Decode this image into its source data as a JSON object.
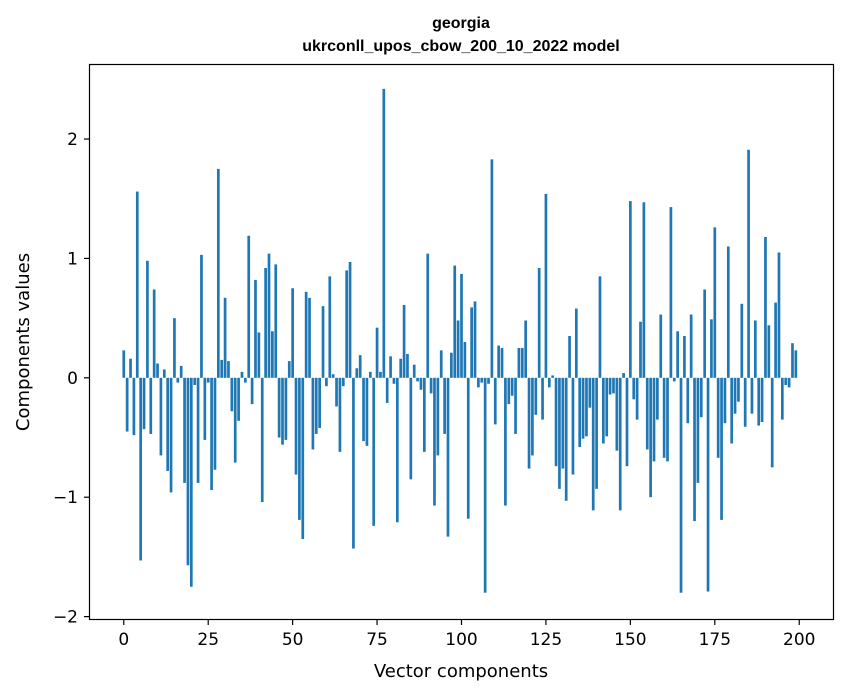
{
  "chart_data": {
    "type": "bar",
    "title": "georgia",
    "subtitle": "ukrconll_upos_cbow_200_10_2022 model",
    "xlabel": "Vector components",
    "ylabel": "Components values",
    "xlim": [
      -10,
      210
    ],
    "ylim": [
      -2.02,
      2.62
    ],
    "xticks": [
      0,
      25,
      50,
      75,
      100,
      125,
      150,
      175,
      200
    ],
    "xtick_labels": [
      "0",
      "25",
      "50",
      "75",
      "100",
      "125",
      "150",
      "175",
      "200"
    ],
    "yticks": [
      -2,
      -1,
      0,
      1,
      2
    ],
    "ytick_labels": [
      "−2",
      "−1",
      "0",
      "1",
      "2"
    ],
    "grid": false,
    "bar_color": "#1f77b4",
    "x": [
      0,
      1,
      2,
      3,
      4,
      5,
      6,
      7,
      8,
      9,
      10,
      11,
      12,
      13,
      14,
      15,
      16,
      17,
      18,
      19,
      20,
      21,
      22,
      23,
      24,
      25,
      26,
      27,
      28,
      29,
      30,
      31,
      32,
      33,
      34,
      35,
      36,
      37,
      38,
      39,
      40,
      41,
      42,
      43,
      44,
      45,
      46,
      47,
      48,
      49,
      50,
      51,
      52,
      53,
      54,
      55,
      56,
      57,
      58,
      59,
      60,
      61,
      62,
      63,
      64,
      65,
      66,
      67,
      68,
      69,
      70,
      71,
      72,
      73,
      74,
      75,
      76,
      77,
      78,
      79,
      80,
      81,
      82,
      83,
      84,
      85,
      86,
      87,
      88,
      89,
      90,
      91,
      92,
      93,
      94,
      95,
      96,
      97,
      98,
      99,
      100,
      101,
      102,
      103,
      104,
      105,
      106,
      107,
      108,
      109,
      110,
      111,
      112,
      113,
      114,
      115,
      116,
      117,
      118,
      119,
      120,
      121,
      122,
      123,
      124,
      125,
      126,
      127,
      128,
      129,
      130,
      131,
      132,
      133,
      134,
      135,
      136,
      137,
      138,
      139,
      140,
      141,
      142,
      143,
      144,
      145,
      146,
      147,
      148,
      149,
      150,
      151,
      152,
      153,
      154,
      155,
      156,
      157,
      158,
      159,
      160,
      161,
      162,
      163,
      164,
      165,
      166,
      167,
      168,
      169,
      170,
      171,
      172,
      173,
      174,
      175,
      176,
      177,
      178,
      179,
      180,
      181,
      182,
      183,
      184,
      185,
      186,
      187,
      188,
      189,
      190,
      191,
      192,
      193,
      194,
      195,
      196,
      197,
      198,
      199
    ],
    "values": [
      0.23,
      -0.45,
      0.16,
      -0.48,
      1.56,
      -1.53,
      -0.43,
      0.98,
      -0.47,
      0.74,
      0.12,
      -0.65,
      0.07,
      -0.78,
      -0.96,
      0.5,
      -0.04,
      0.1,
      -0.88,
      -1.57,
      -1.75,
      -0.06,
      -0.88,
      1.03,
      -0.52,
      -0.04,
      -0.94,
      -0.77,
      1.75,
      0.15,
      0.67,
      0.14,
      -0.28,
      -0.71,
      -0.36,
      0.05,
      -0.04,
      1.19,
      -0.22,
      0.82,
      0.38,
      -1.04,
      0.92,
      1.04,
      0.39,
      0.95,
      -0.5,
      -0.56,
      -0.52,
      0.14,
      0.75,
      -0.81,
      -1.19,
      -1.35,
      0.72,
      0.67,
      -0.6,
      -0.47,
      -0.42,
      0.6,
      -0.07,
      0.85,
      0.03,
      -0.24,
      -0.62,
      -0.07,
      0.9,
      0.97,
      -1.43,
      0.08,
      0.19,
      -0.53,
      -0.57,
      0.05,
      -1.24,
      0.42,
      0.05,
      2.42,
      -0.21,
      0.18,
      -0.05,
      -1.21,
      0.16,
      0.61,
      0.2,
      -0.85,
      0.11,
      -0.03,
      -0.1,
      -0.62,
      1.04,
      -0.13,
      -1.07,
      -0.65,
      0.23,
      -0.47,
      -1.33,
      0.21,
      0.94,
      0.48,
      0.87,
      0.3,
      -1.18,
      0.59,
      0.64,
      -0.08,
      -0.04,
      -1.8,
      -0.05,
      1.83,
      -0.39,
      0.27,
      0.25,
      -1.07,
      -0.22,
      -0.15,
      -0.47,
      0.25,
      0.25,
      0.48,
      -0.76,
      -0.65,
      -0.31,
      0.92,
      -0.35,
      1.54,
      -0.08,
      0.02,
      -0.74,
      -0.93,
      -0.76,
      -1.03,
      0.35,
      -0.81,
      0.58,
      -0.58,
      -0.51,
      -0.49,
      -0.25,
      -1.11,
      -0.93,
      0.85,
      -0.55,
      -0.49,
      -0.14,
      -0.13,
      -0.61,
      -1.11,
      0.04,
      -0.74,
      1.48,
      -0.18,
      -0.35,
      0.47,
      1.47,
      -0.6,
      -1.0,
      -0.7,
      -0.35,
      0.53,
      -0.67,
      -0.7,
      1.43,
      -0.03,
      0.39,
      -1.8,
      0.35,
      -0.38,
      0.53,
      -1.2,
      -0.88,
      -0.33,
      0.74,
      -1.79,
      0.49,
      1.26,
      -0.67,
      -1.19,
      -0.38,
      1.1,
      -0.55,
      -0.3,
      -0.2,
      0.62,
      -0.41,
      1.91,
      -0.3,
      0.48,
      -0.4,
      -0.37,
      1.18,
      0.44,
      -0.75,
      0.63,
      1.05,
      -0.35,
      -0.06,
      -0.08,
      0.29,
      0.23
    ]
  }
}
